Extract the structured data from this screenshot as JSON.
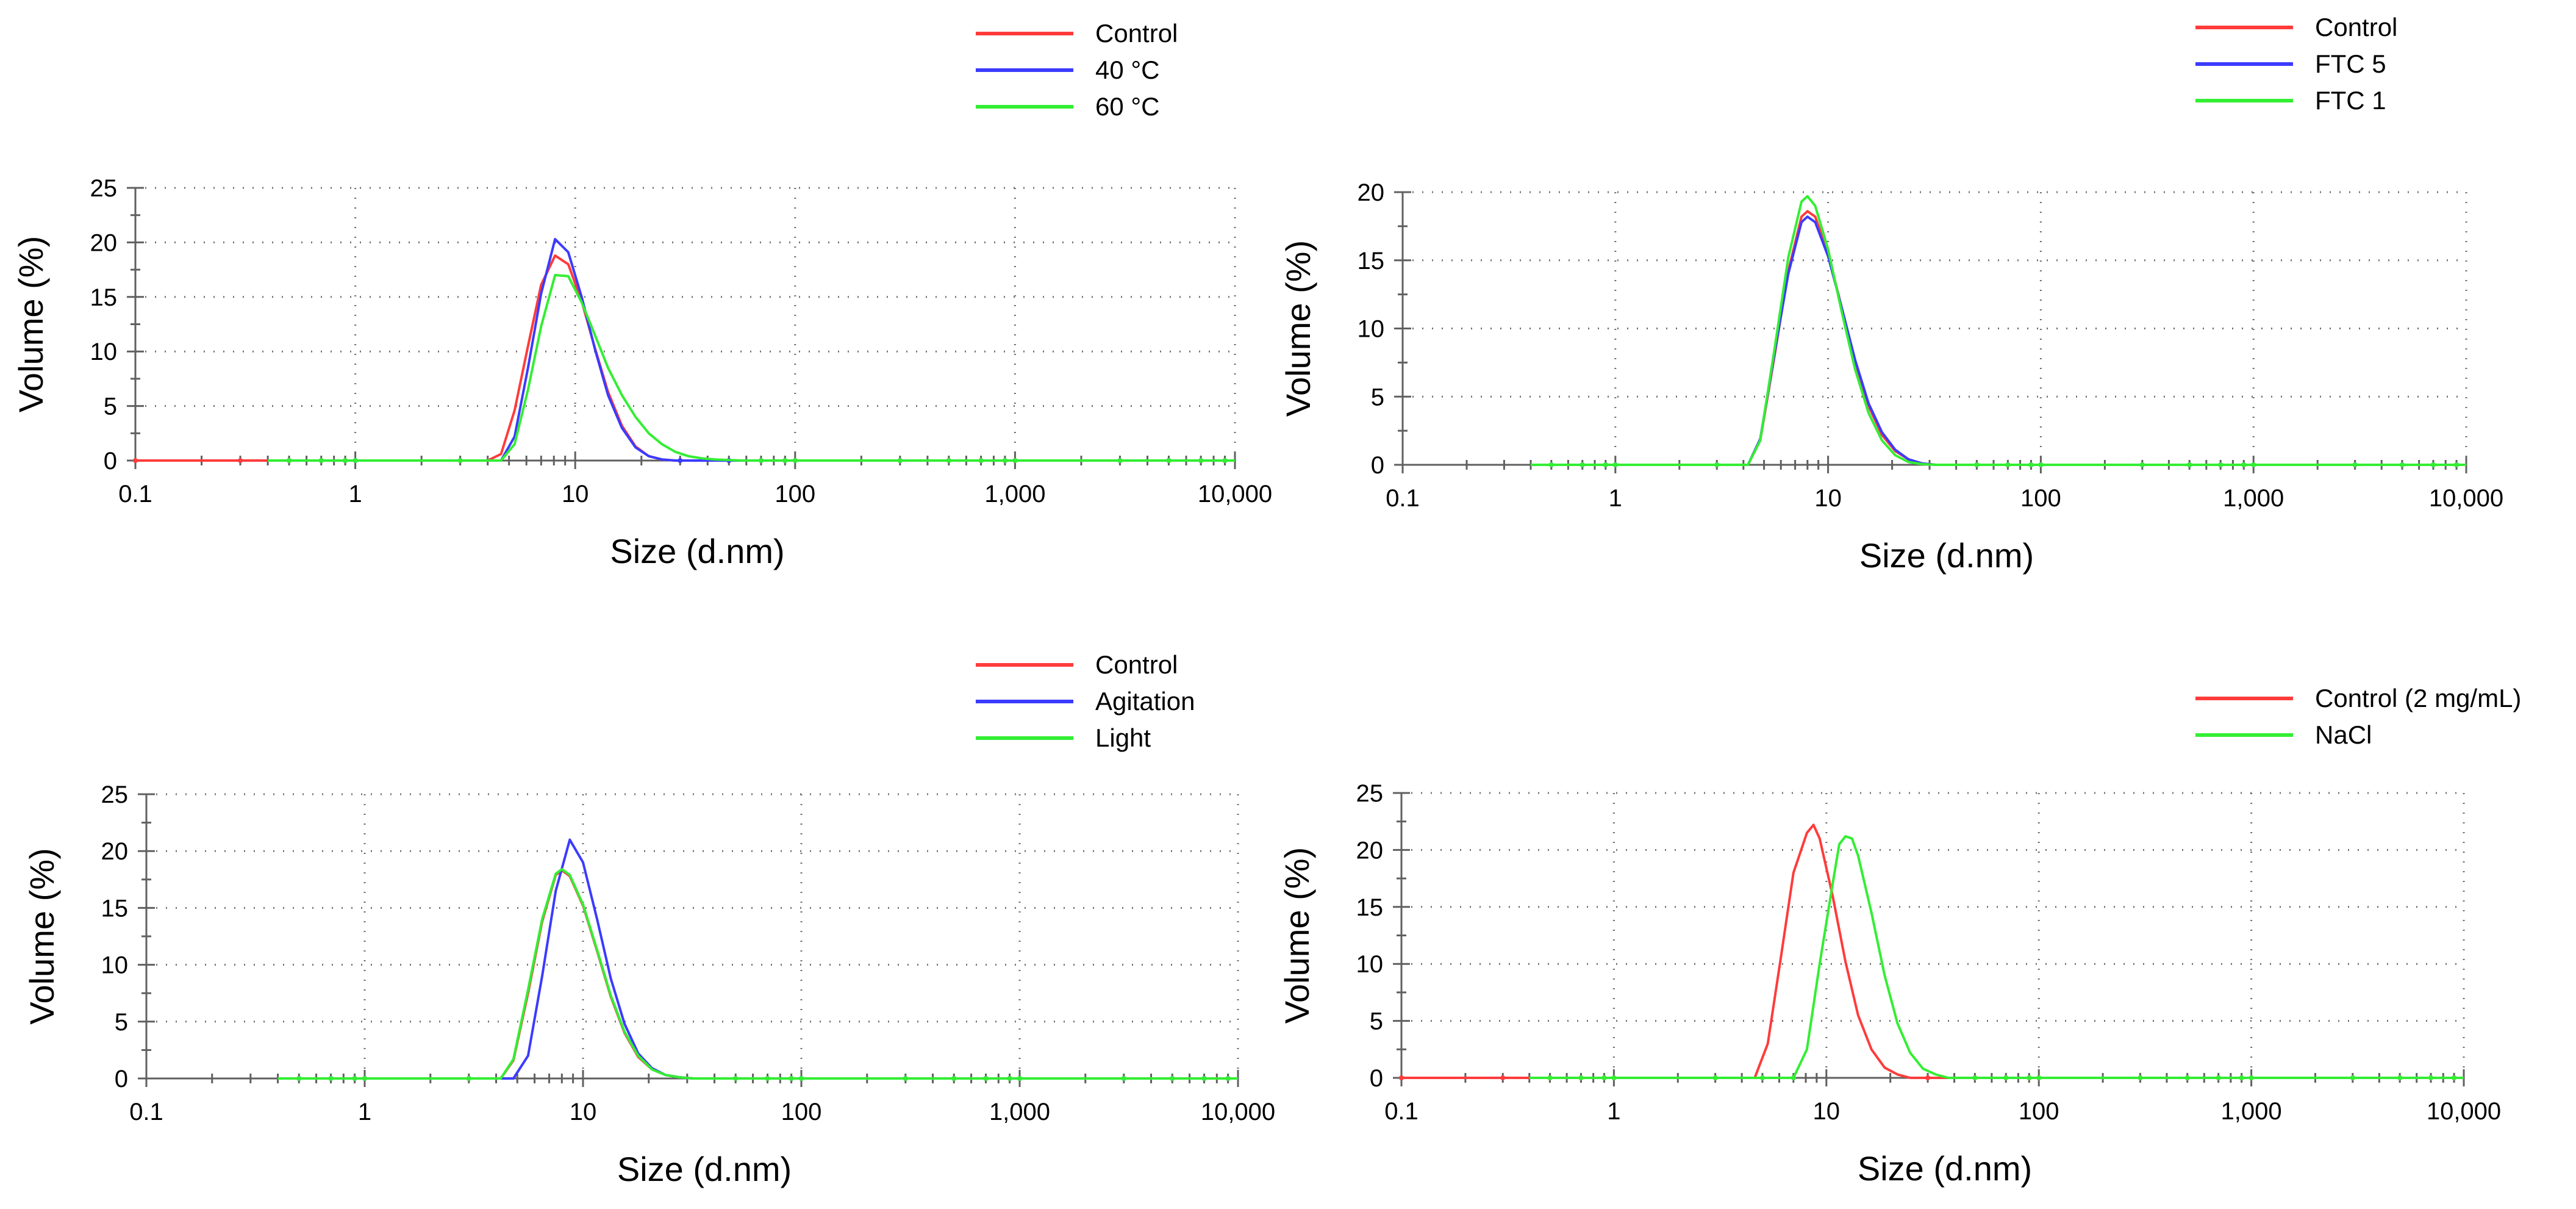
{
  "colors": {
    "red": "#ff3b3b",
    "blue": "#3b3bff",
    "green": "#33ee33",
    "grid": "#707070"
  },
  "chart_data": [
    {
      "type": "line",
      "id": "temperature",
      "xscale": "log",
      "xlabel": "Size (d.nm)",
      "ylabel": "Volume (%)",
      "xlim": [
        0.1,
        10000
      ],
      "ylim": [
        0,
        25
      ],
      "xticks": [
        0.1,
        1,
        10,
        100,
        1000,
        10000
      ],
      "xtick_labels": [
        "0.1",
        "1",
        "10",
        "100",
        "1,000",
        "10,000"
      ],
      "yticks": [
        0,
        5,
        10,
        15,
        20,
        25
      ],
      "ytick_labels": [
        "0",
        "5",
        "10",
        "15",
        "20",
        "25"
      ],
      "legend_position": "top-right",
      "series": [
        {
          "name": "Control",
          "color": "#ff3b3b",
          "x": [
            0.1,
            4.0,
            4.6,
            5.3,
            6.1,
            7.0,
            8.1,
            9.3,
            10.7,
            12.3,
            14.1,
            16.3,
            18.8,
            21.6,
            24.8,
            28.5,
            10000
          ],
          "y": [
            0,
            0,
            0.6,
            4.6,
            10.5,
            16.1,
            18.8,
            18.0,
            14.6,
            10.3,
            6.3,
            3.2,
            1.3,
            0.4,
            0.1,
            0,
            0
          ]
        },
        {
          "name": "40 °C",
          "color": "#3b3bff",
          "x": [
            0.4,
            4.6,
            5.3,
            6.1,
            7.0,
            8.1,
            9.3,
            10.7,
            12.3,
            14.1,
            16.3,
            18.8,
            21.6,
            24.8,
            28.5,
            10000
          ],
          "y": [
            0,
            0,
            2.2,
            8.5,
            15.3,
            20.3,
            19.1,
            15.0,
            10.2,
            6.0,
            3.0,
            1.2,
            0.4,
            0.1,
            0,
            0
          ]
        },
        {
          "name": "60 °C",
          "color": "#33ee33",
          "x": [
            0.4,
            4.6,
            5.3,
            6.1,
            7.0,
            8.1,
            9.3,
            10.7,
            12.3,
            14.1,
            16.3,
            18.8,
            21.6,
            24.8,
            28.5,
            32.7,
            37.6,
            43.2,
            49.7,
            57.2,
            10000
          ],
          "y": [
            0,
            0,
            1.5,
            6.5,
            12.3,
            17.0,
            16.9,
            14.5,
            11.5,
            8.5,
            6.0,
            4.0,
            2.5,
            1.5,
            0.8,
            0.4,
            0.2,
            0.1,
            0.05,
            0,
            0
          ]
        }
      ]
    },
    {
      "type": "line",
      "id": "freeze-thaw",
      "xscale": "log",
      "xlabel": "Size (d.nm)",
      "ylabel": "Volume (%)",
      "xlim": [
        0.1,
        10000
      ],
      "ylim": [
        0,
        20
      ],
      "xticks": [
        0.1,
        1,
        10,
        100,
        1000,
        10000
      ],
      "xtick_labels": [
        "0.1",
        "1",
        "10",
        "100",
        "1,000",
        "10,000"
      ],
      "yticks": [
        0,
        5,
        10,
        15,
        20
      ],
      "ytick_labels": [
        "0",
        "5",
        "10",
        "15",
        "20"
      ],
      "legend_position": "top-right",
      "series": [
        {
          "name": "Control",
          "color": "#ff3b3b",
          "x": [
            0.4,
            4.2,
            4.8,
            5.6,
            6.5,
            7.5,
            8.0,
            8.7,
            10.0,
            11.6,
            13.4,
            15.5,
            17.9,
            20.7,
            23.9,
            27.7,
            32.0,
            10000
          ],
          "y": [
            0,
            0,
            1.8,
            8.0,
            14.2,
            18.2,
            18.6,
            18.2,
            15.5,
            11.5,
            7.5,
            4.3,
            2.2,
            1.0,
            0.4,
            0.1,
            0,
            0
          ]
        },
        {
          "name": "FTC 5",
          "color": "#3b3bff",
          "x": [
            0.4,
            4.2,
            4.8,
            5.6,
            6.5,
            7.5,
            8.0,
            8.7,
            10.0,
            11.6,
            13.4,
            15.5,
            17.9,
            20.7,
            23.9,
            27.7,
            32.0,
            10000
          ],
          "y": [
            0,
            0,
            1.9,
            8.2,
            14.0,
            17.8,
            18.2,
            17.8,
            15.3,
            11.5,
            7.7,
            4.5,
            2.4,
            1.1,
            0.4,
            0.1,
            0,
            0
          ]
        },
        {
          "name": "FTC 1",
          "color": "#33ee33",
          "x": [
            0.4,
            4.2,
            4.8,
            5.6,
            6.5,
            7.5,
            8.0,
            8.7,
            10.0,
            11.6,
            13.4,
            15.5,
            17.9,
            20.7,
            23.9,
            27.7,
            32.0,
            10000
          ],
          "y": [
            0,
            0,
            1.8,
            8.5,
            15.2,
            19.3,
            19.7,
            19.0,
            15.8,
            11.2,
            7.0,
            3.8,
            1.8,
            0.7,
            0.2,
            0.05,
            0,
            0
          ]
        }
      ]
    },
    {
      "type": "line",
      "id": "stress",
      "xscale": "log",
      "xlabel": "Size (d.nm)",
      "ylabel": "Volume (%)",
      "xlim": [
        0.1,
        10000
      ],
      "ylim": [
        0,
        25
      ],
      "xticks": [
        0.1,
        1,
        10,
        100,
        1000,
        10000
      ],
      "xtick_labels": [
        "0.1",
        "1",
        "10",
        "100",
        "1,000",
        "10,000"
      ],
      "yticks": [
        0,
        5,
        10,
        15,
        20,
        25
      ],
      "ytick_labels": [
        "0",
        "5",
        "10",
        "15",
        "20",
        "25"
      ],
      "legend_position": "top-right",
      "series": [
        {
          "name": "Control",
          "color": "#ff3b3b",
          "x": [
            0.4,
            4.2,
            4.8,
            5.6,
            6.5,
            7.5,
            8.0,
            8.7,
            10.0,
            11.6,
            13.4,
            15.5,
            17.9,
            20.7,
            23.9,
            27.7,
            32.0,
            10000
          ],
          "y": [
            0,
            0,
            1.6,
            7.5,
            13.8,
            17.9,
            18.3,
            17.8,
            15.2,
            11.2,
            7.2,
            4.0,
            1.9,
            0.8,
            0.3,
            0.1,
            0,
            0
          ]
        },
        {
          "name": "Agitation",
          "color": "#3b3bff",
          "x": [
            0.4,
            4.8,
            5.6,
            6.5,
            7.5,
            8.7,
            10.0,
            11.6,
            13.4,
            15.5,
            17.9,
            20.7,
            23.9,
            27.7,
            32.0,
            10000
          ],
          "y": [
            0,
            0,
            2.0,
            9.0,
            16.5,
            21.0,
            19.0,
            14.0,
            8.8,
            4.8,
            2.2,
            0.9,
            0.3,
            0.1,
            0,
            0
          ]
        },
        {
          "name": "Light",
          "color": "#33ee33",
          "x": [
            0.4,
            4.2,
            4.8,
            5.6,
            6.5,
            7.5,
            8.0,
            8.7,
            10.0,
            11.6,
            13.4,
            15.5,
            17.9,
            20.7,
            23.9,
            27.7,
            32.0,
            10000
          ],
          "y": [
            0,
            0,
            1.7,
            7.8,
            14.0,
            18.0,
            18.4,
            17.9,
            15.3,
            11.3,
            7.3,
            4.1,
            2.0,
            0.8,
            0.3,
            0.1,
            0,
            0
          ]
        }
      ]
    },
    {
      "type": "line",
      "id": "ionic-strength",
      "xscale": "log",
      "xlabel": "Size (d.nm)",
      "ylabel": "Volume (%)",
      "xlim": [
        0.1,
        10000
      ],
      "ylim": [
        0,
        25
      ],
      "xticks": [
        0.1,
        1,
        10,
        100,
        1000,
        10000
      ],
      "xtick_labels": [
        "0.1",
        "1",
        "10",
        "100",
        "1,000",
        "10,000"
      ],
      "yticks": [
        0,
        5,
        10,
        15,
        20,
        25
      ],
      "ytick_labels": [
        "0",
        "5",
        "10",
        "15",
        "20",
        "25"
      ],
      "legend_position": "top-right",
      "series": [
        {
          "name": "Control (2 mg/mL)",
          "color": "#ff3b3b",
          "x": [
            0.1,
            4.6,
            5.3,
            6.1,
            7.0,
            8.1,
            8.7,
            9.3,
            10.7,
            12.3,
            14.1,
            16.3,
            18.8,
            21.6,
            24.8,
            10000
          ],
          "y": [
            0,
            0,
            3.0,
            10.5,
            18.0,
            21.5,
            22.2,
            21.0,
            16.0,
            10.2,
            5.5,
            2.5,
            0.9,
            0.3,
            0,
            0
          ]
        },
        {
          "name": "NaCl",
          "color": "#33ee33",
          "x": [
            0.4,
            7.0,
            8.1,
            9.3,
            10.7,
            11.5,
            12.3,
            13.2,
            14.1,
            16.3,
            18.8,
            21.6,
            24.8,
            28.5,
            32.7,
            37.6,
            10000
          ],
          "y": [
            0,
            0,
            2.5,
            10.0,
            17.0,
            20.5,
            21.2,
            21.0,
            19.5,
            14.5,
            9.0,
            4.8,
            2.2,
            0.8,
            0.3,
            0,
            0
          ]
        }
      ]
    }
  ]
}
